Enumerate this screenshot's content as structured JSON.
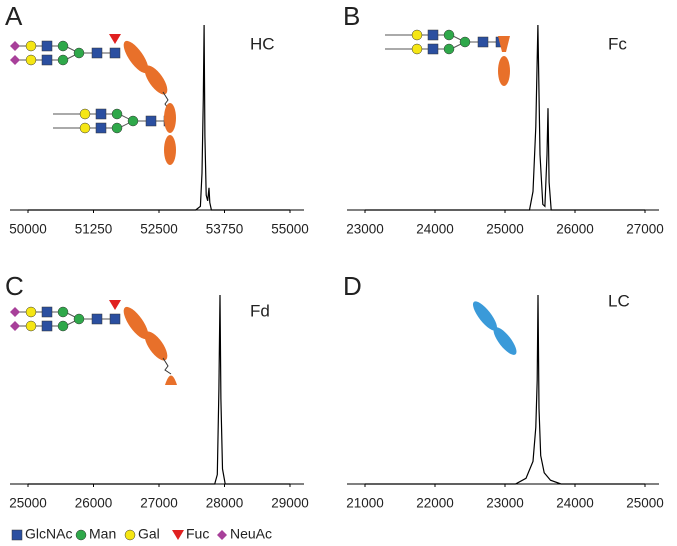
{
  "chart_data": [
    {
      "type": "line",
      "letter": "A",
      "label": "HC",
      "color": "#000000",
      "x": [
        50000,
        53200,
        53290,
        53320,
        53345,
        53360,
        53375,
        53400,
        53430,
        53455,
        53470,
        53500,
        55000
      ],
      "values": [
        0,
        0,
        2,
        20,
        60,
        100,
        40,
        8,
        5,
        12,
        4,
        0,
        0
      ],
      "xlim": [
        50000,
        55000
      ],
      "xticks": [
        50000,
        51250,
        52500,
        53750,
        55000
      ],
      "ylim": [
        0,
        100
      ]
    },
    {
      "type": "line",
      "letter": "B",
      "label": "Fc",
      "color": "#000000",
      "x": [
        23000,
        25350,
        25400,
        25440,
        25470,
        25500,
        25540,
        25570,
        25600,
        25614,
        25630,
        25660,
        27000
      ],
      "values": [
        0,
        0,
        10,
        45,
        100,
        30,
        3,
        2,
        30,
        55,
        15,
        0,
        0
      ],
      "xlim": [
        23000,
        27000
      ],
      "xticks": [
        23000,
        24000,
        25000,
        26000,
        27000
      ],
      "ylim": [
        0,
        100
      ]
    },
    {
      "type": "line",
      "letter": "C",
      "label": "Fd",
      "color": "#000000",
      "x": [
        25000,
        27850,
        27890,
        27915,
        27931,
        27945,
        27970,
        28010,
        29000
      ],
      "values": [
        0,
        0,
        5,
        50,
        100,
        45,
        8,
        0,
        0
      ],
      "xlim": [
        25000,
        29000
      ],
      "xticks": [
        25000,
        26000,
        27000,
        28000,
        29000
      ],
      "ylim": [
        0,
        100
      ]
    },
    {
      "type": "line",
      "letter": "D",
      "label": "LC",
      "color": "#000000",
      "x": [
        21000,
        23150,
        23300,
        23400,
        23440,
        23460,
        23471,
        23485,
        23510,
        23560,
        23650,
        23800,
        25000
      ],
      "values": [
        0,
        0,
        3,
        12,
        30,
        55,
        100,
        40,
        15,
        6,
        2,
        0,
        0
      ],
      "xlim": [
        21000,
        25000
      ],
      "xticks": [
        21000,
        22000,
        23000,
        24000,
        25000
      ],
      "ylim": [
        0,
        100
      ]
    }
  ],
  "glycan_legend": [
    "GlcNAc",
    "Man",
    "Gal",
    "Fuc",
    "NeuAc"
  ]
}
